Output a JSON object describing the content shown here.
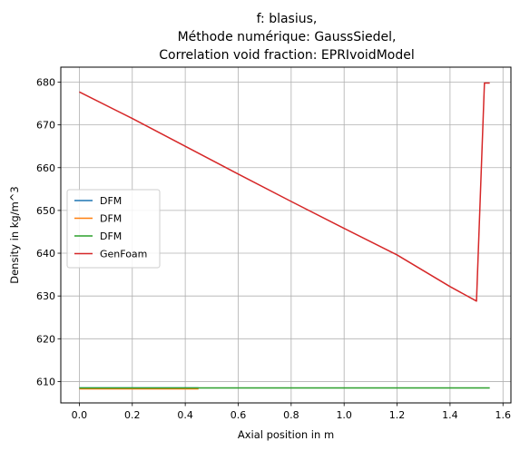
{
  "chart_data": {
    "type": "line",
    "title_lines": [
      "f: blasius,",
      "Méthode numérique: GaussSiedel,",
      "Correlation void fraction: EPRIvoidModel"
    ],
    "xlabel": "Axial position in m",
    "ylabel": "Density in kg/m^3",
    "xlim": [
      -0.07,
      1.63
    ],
    "ylim": [
      605,
      683.5
    ],
    "xticks": [
      0.0,
      0.2,
      0.4,
      0.6,
      0.8,
      1.0,
      1.2,
      1.4,
      1.6
    ],
    "xtick_labels": [
      "0.0",
      "0.2",
      "0.4",
      "0.6",
      "0.8",
      "1.0",
      "1.2",
      "1.4",
      "1.6"
    ],
    "yticks": [
      610,
      620,
      630,
      640,
      650,
      660,
      670,
      680
    ],
    "ytick_labels": [
      "610",
      "620",
      "630",
      "640",
      "650",
      "660",
      "670",
      "680"
    ],
    "grid": true,
    "legend_position": "center-left",
    "series": [
      {
        "name": "DFM",
        "color": "#1f77b4",
        "x": [
          0.0,
          0.45
        ],
        "y": [
          608.5,
          608.5
        ]
      },
      {
        "name": "DFM",
        "color": "#ff7f0e",
        "x": [
          0.0,
          0.45
        ],
        "y": [
          608.3,
          608.3
        ]
      },
      {
        "name": "DFM",
        "color": "#2ca02c",
        "x": [
          0.0,
          1.55
        ],
        "y": [
          608.5,
          608.5
        ]
      },
      {
        "name": "GenFoam",
        "color": "#d62728",
        "x": [
          0.0,
          0.2,
          0.4,
          0.6,
          0.8,
          1.0,
          1.2,
          1.4,
          1.5,
          1.53,
          1.55
        ],
        "y": [
          677.7,
          671.5,
          665.0,
          658.5,
          652.1,
          645.8,
          639.6,
          632.2,
          628.8,
          679.8,
          679.8
        ]
      }
    ]
  }
}
